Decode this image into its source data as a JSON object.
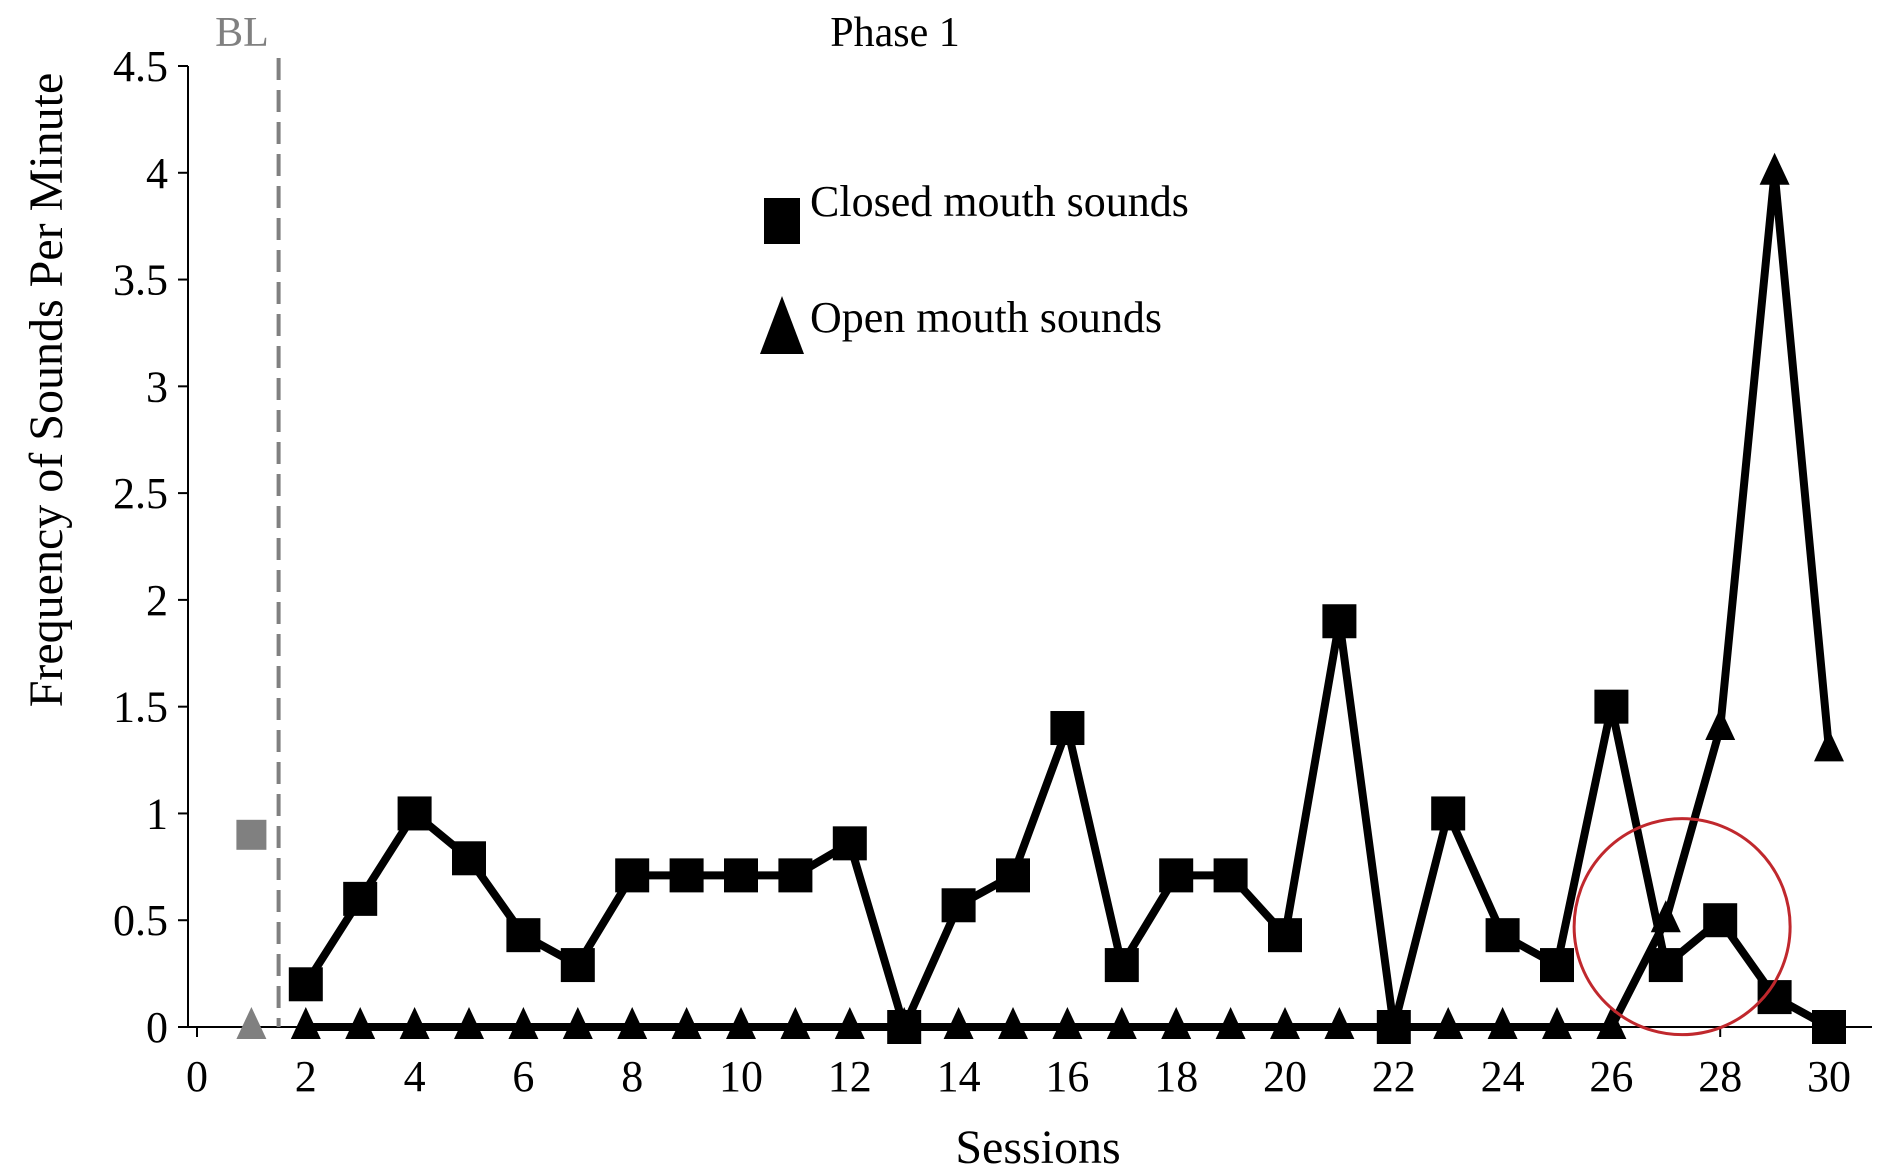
{
  "chart_data": {
    "type": "line",
    "title": "",
    "xlabel": "Sessions",
    "ylabel": "Frequency of Sounds Per Minute",
    "xlim": [
      0,
      31
    ],
    "ylim": [
      0,
      4.5
    ],
    "x_ticks": [
      "0",
      "2",
      "4",
      "6",
      "8",
      "10",
      "12",
      "14",
      "16",
      "18",
      "20",
      "22",
      "24",
      "26",
      "28",
      "30"
    ],
    "y_ticks": [
      "0",
      "0.5",
      "1",
      "1.5",
      "2",
      "2.5",
      "3",
      "3.5",
      "4",
      "4.5"
    ],
    "grid": false,
    "legend_position": "top-center",
    "phase_labels": {
      "baseline": "BL",
      "phase1": "Phase 1"
    },
    "phase_change_after_session": 1.5,
    "baseline_color": "#808080",
    "series_color": "#000000",
    "highlight_circle": {
      "center_x": 27.3,
      "center_y": 0.47,
      "color": "#c0282d"
    },
    "baseline_points": [
      {
        "series": "Closed mouth sounds",
        "x": 1,
        "y": 0.9
      },
      {
        "series": "Open mouth sounds",
        "x": 1,
        "y": 0
      }
    ],
    "series": [
      {
        "name": "Closed mouth sounds",
        "marker": "square",
        "x": [
          2,
          3,
          4,
          5,
          6,
          7,
          8,
          9,
          10,
          11,
          12,
          13,
          14,
          15,
          16,
          17,
          18,
          19,
          20,
          21,
          22,
          23,
          24,
          25,
          26,
          27,
          28,
          29,
          30
        ],
        "values": [
          0.2,
          0.6,
          1.0,
          0.79,
          0.43,
          0.29,
          0.71,
          0.71,
          0.71,
          0.71,
          0.86,
          0,
          0.57,
          0.71,
          1.4,
          0.29,
          0.71,
          0.71,
          0.43,
          1.9,
          0,
          1.0,
          0.43,
          0.29,
          1.5,
          0.29,
          0.5,
          0.14,
          0
        ]
      },
      {
        "name": "Open mouth sounds",
        "marker": "triangle",
        "x": [
          2,
          3,
          4,
          5,
          6,
          7,
          8,
          9,
          10,
          11,
          12,
          13,
          14,
          15,
          16,
          17,
          18,
          19,
          20,
          21,
          22,
          23,
          24,
          25,
          26,
          27,
          28,
          29,
          30
        ],
        "values": [
          0,
          0,
          0,
          0,
          0,
          0,
          0,
          0,
          0,
          0,
          0,
          0,
          0,
          0,
          0,
          0,
          0,
          0,
          0,
          0,
          0,
          0,
          0,
          0,
          0,
          0.5,
          1.4,
          4.0,
          1.3
        ]
      }
    ]
  }
}
